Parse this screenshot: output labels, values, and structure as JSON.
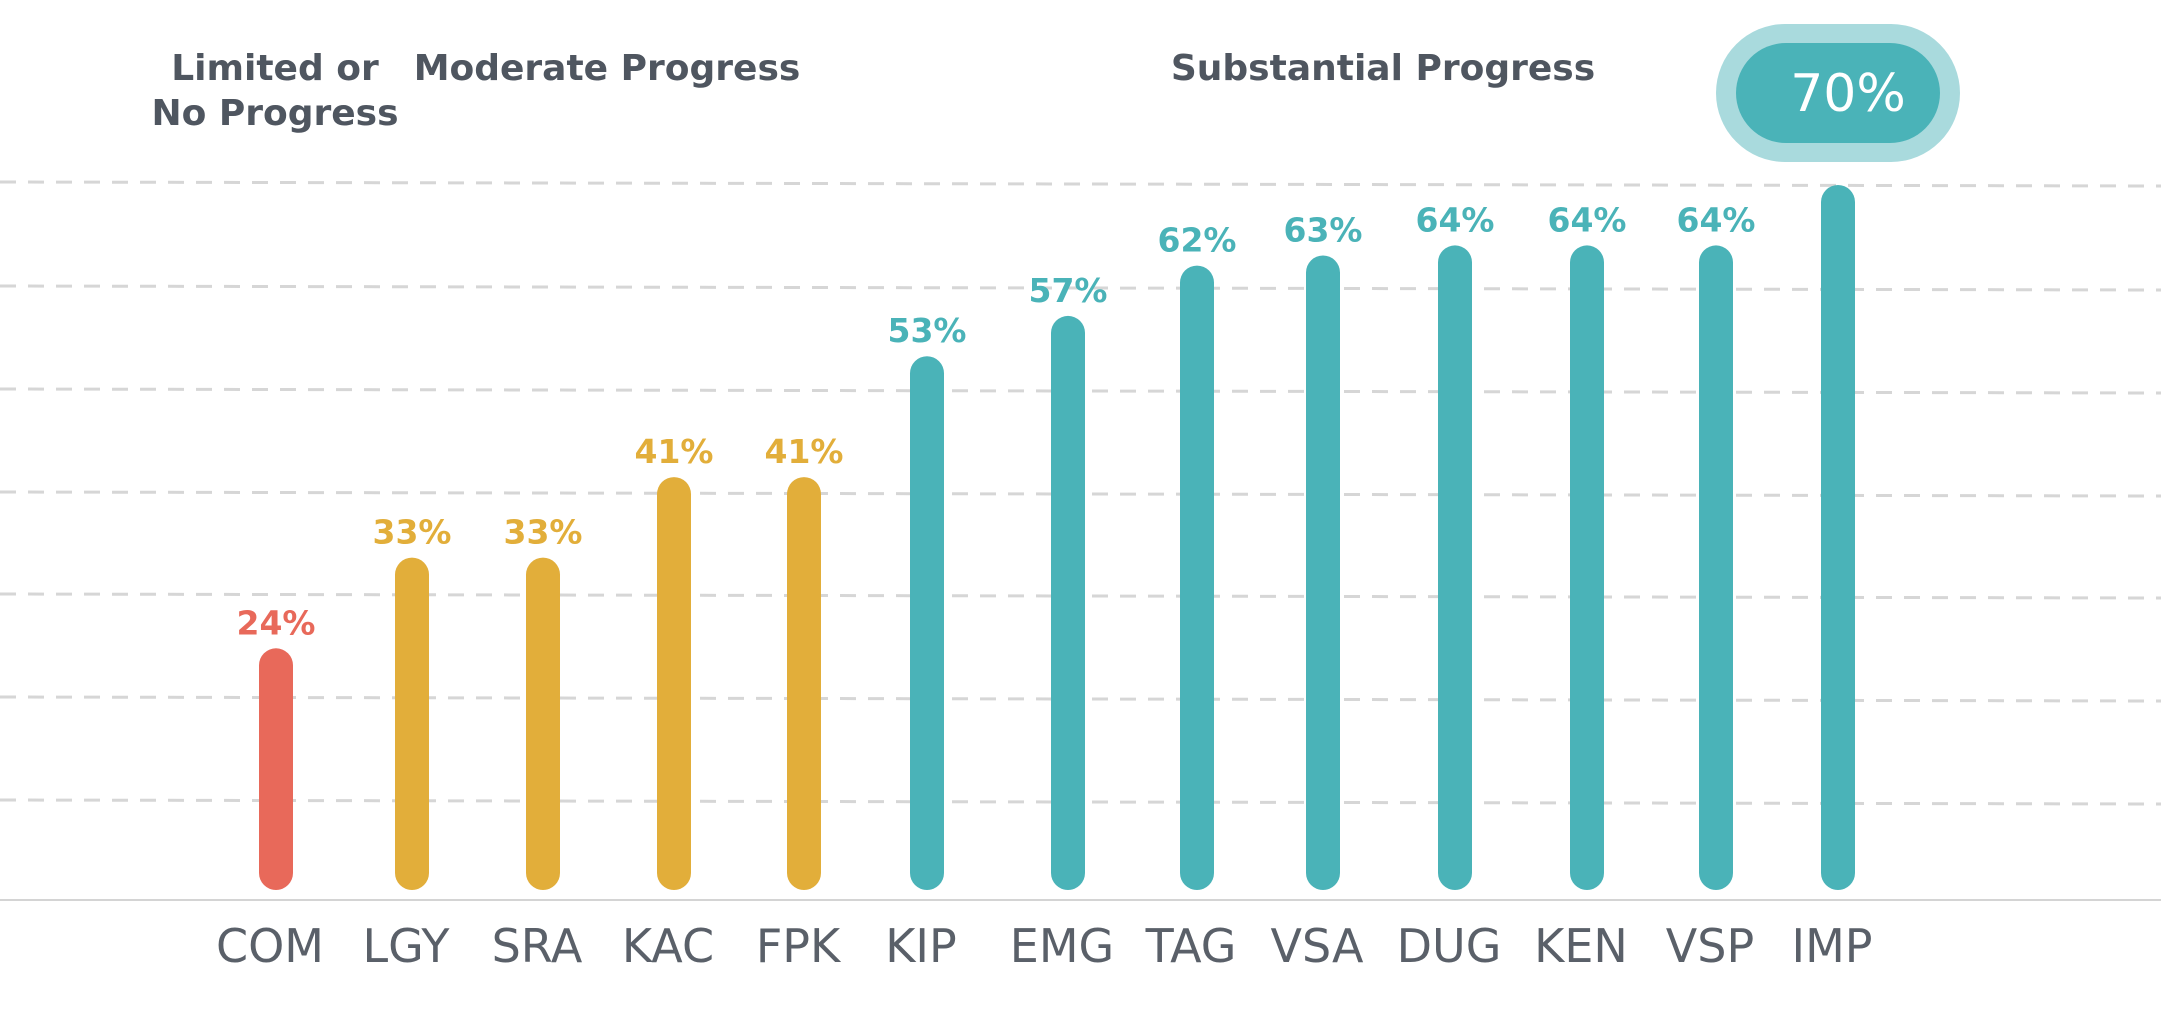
{
  "chart_data": {
    "type": "bar",
    "title": "",
    "xlabel": "",
    "ylabel": "",
    "ylim": [
      0,
      70
    ],
    "grid": true,
    "categories": [
      "COM",
      "LGY",
      "SRA",
      "KAC",
      "FPK",
      "KIP",
      "EMG",
      "TAG",
      "VSA",
      "DUG",
      "KEN",
      "VSP",
      "IMP"
    ],
    "values": [
      24,
      33,
      33,
      41,
      41,
      53,
      57,
      62,
      63,
      64,
      64,
      64,
      70
    ],
    "value_labels": [
      "24%",
      "33%",
      "33%",
      "41%",
      "41%",
      "53%",
      "57%",
      "62%",
      "63%",
      "64%",
      "64%",
      "64%",
      ""
    ],
    "groups": [
      {
        "name_lines": [
          "Limited or",
          "No Progress"
        ],
        "members": [
          "COM"
        ],
        "color": "#E8695A"
      },
      {
        "name_lines": [
          "Moderate Progress"
        ],
        "members": [
          "LGY",
          "SRA",
          "KAC",
          "FPK"
        ],
        "color": "#E2AE3A"
      },
      {
        "name_lines": [
          "Substantial Progress"
        ],
        "members": [
          "KIP",
          "EMG",
          "TAG",
          "VSA",
          "DUG",
          "KEN",
          "VSP",
          "IMP"
        ],
        "color": "#4AB3B8"
      }
    ],
    "callout": {
      "category": "IMP",
      "label": "70%"
    }
  }
}
